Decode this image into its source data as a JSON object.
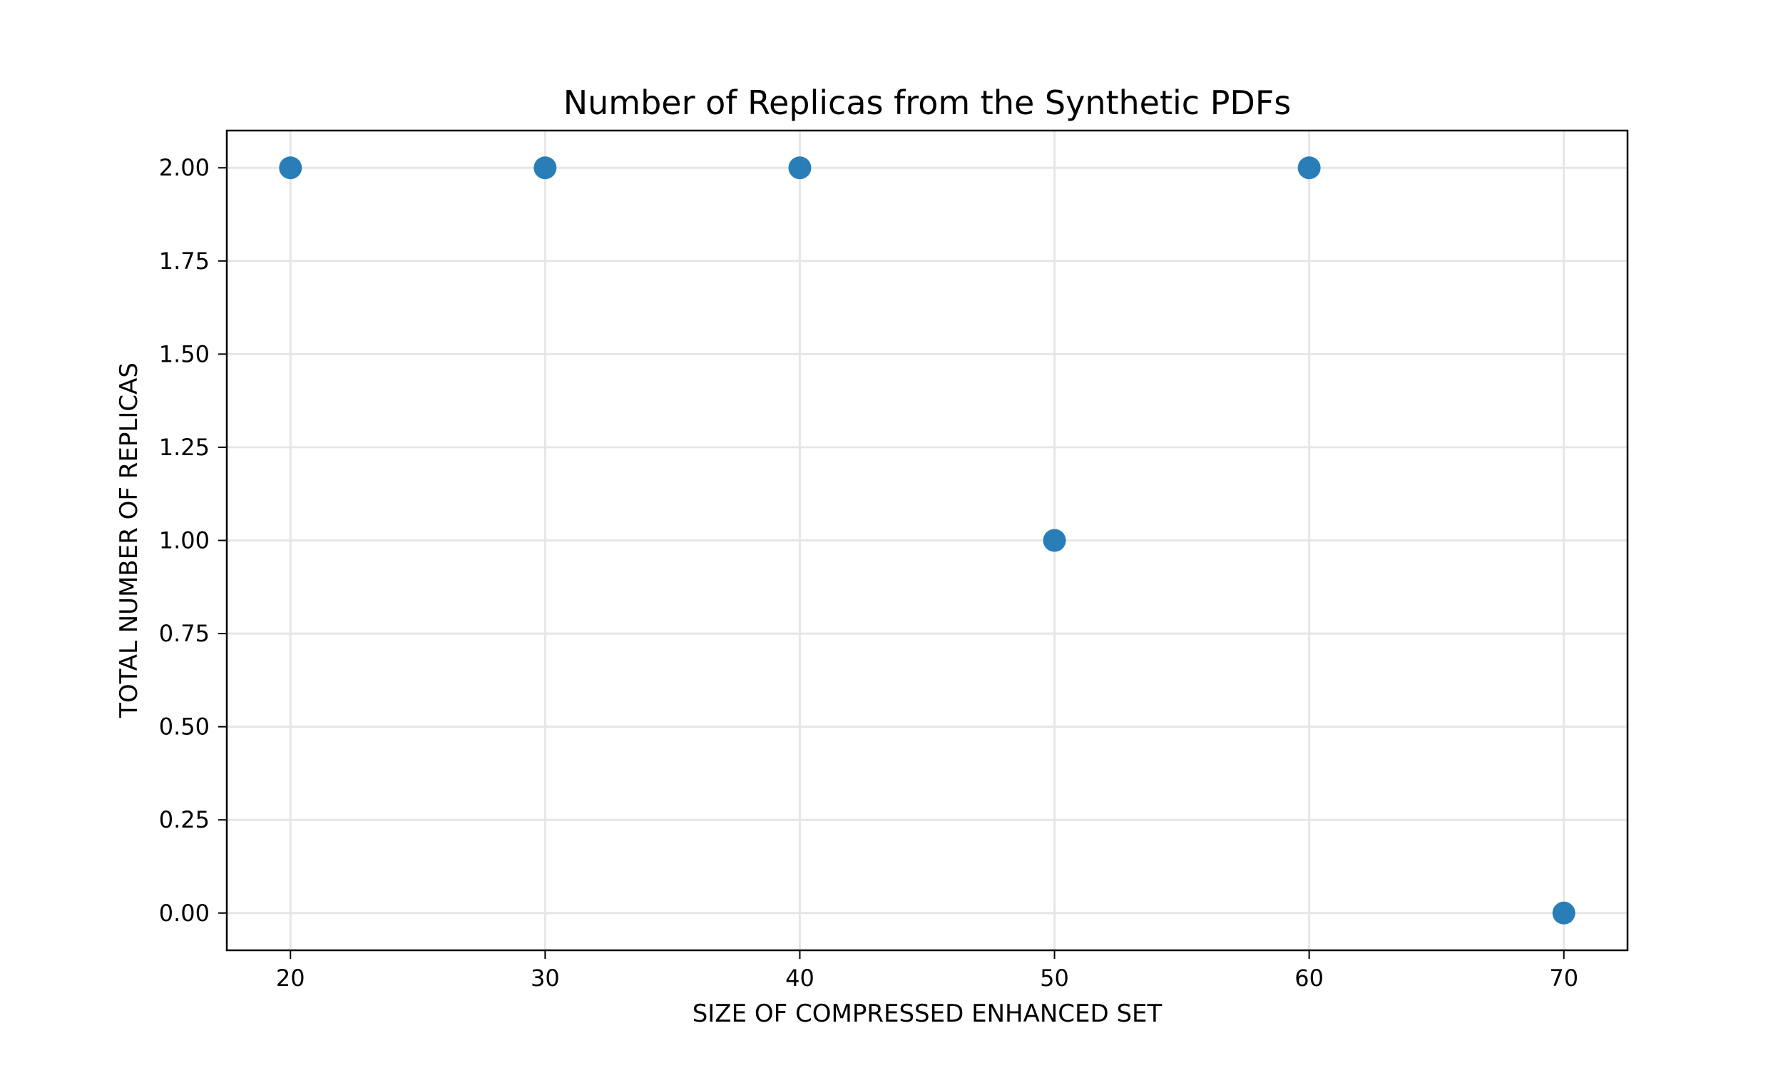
{
  "chart_data": {
    "type": "scatter",
    "title": "Number of Replicas from the Synthetic PDFs",
    "xlabel": "SIZE OF COMPRESSED ENHANCED SET",
    "ylabel": "TOTAL NUMBER OF REPLICAS",
    "x": [
      20,
      30,
      40,
      50,
      60,
      70
    ],
    "y": [
      2.0,
      2.0,
      2.0,
      1.0,
      2.0,
      0.0
    ],
    "xlim": [
      17.5,
      72.5
    ],
    "ylim": [
      -0.1,
      2.1
    ],
    "xticks": [
      20,
      30,
      40,
      50,
      60,
      70
    ],
    "xtick_labels": [
      "20",
      "30",
      "40",
      "50",
      "60",
      "70"
    ],
    "yticks": [
      0.0,
      0.25,
      0.5,
      0.75,
      1.0,
      1.25,
      1.5,
      1.75,
      2.0
    ],
    "ytick_labels": [
      "0.00",
      "0.25",
      "0.50",
      "0.75",
      "1.00",
      "1.25",
      "1.50",
      "1.75",
      "2.00"
    ],
    "grid": true,
    "marker_color": "#1f77b4",
    "grid_color": "#e6e6e6"
  }
}
